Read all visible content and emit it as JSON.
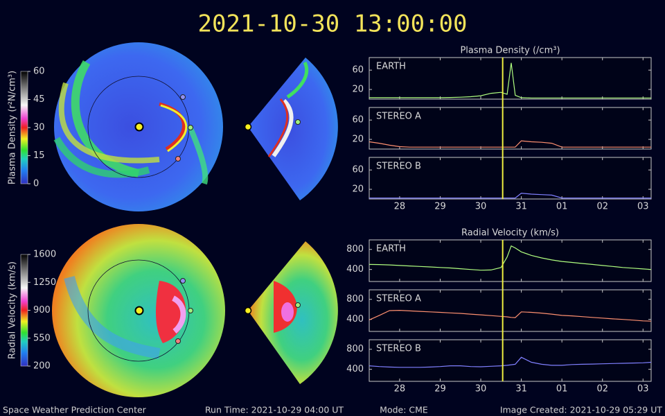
{
  "title": "2021-10-30  13:00:00",
  "footer": {
    "center": "Space Weather Prediction Center",
    "run_time": "Run Time: 2021-10-29 04:00 UT",
    "mode": "Mode: CME",
    "created": "Image Created: 2021-10-29 05:29 UT"
  },
  "colorbars": [
    {
      "label": "Plasma Density (r²N/cm³)",
      "ticks": [
        0,
        15,
        30,
        45,
        60
      ]
    },
    {
      "label": "Radial Velocity (km/s)",
      "ticks": [
        200,
        550,
        900,
        1250,
        1600
      ]
    }
  ],
  "chart_data": [
    {
      "type": "line",
      "title": "Plasma Density (/cm³)",
      "x": [
        27.25,
        27.5,
        27.75,
        28,
        28.25,
        28.5,
        28.75,
        29,
        29.25,
        29.5,
        29.75,
        30,
        30.25,
        30.5,
        30.65,
        30.75,
        30.85,
        31,
        31.25,
        31.5,
        31.75,
        32,
        32.25,
        32.5,
        32.75,
        33,
        33.25,
        33.5,
        33.75,
        34,
        34.2
      ],
      "xlim": [
        27.25,
        34.2
      ],
      "xticks": [
        28,
        29,
        30,
        31,
        {
          "value": 32,
          "label": "01"
        },
        {
          "value": 33,
          "label": "02"
        },
        {
          "value": 34,
          "label": "03"
        }
      ],
      "ylim": [
        0,
        86
      ],
      "yticks": [
        20,
        60
      ],
      "current_time": 30.54,
      "marker_color": "#f0f040",
      "series": [
        {
          "name": "EARTH",
          "color": "#b0ff80",
          "values": [
            3,
            3,
            3,
            3,
            3,
            3,
            3,
            3,
            3.5,
            4,
            5,
            7,
            12,
            14,
            10,
            75,
            8,
            3,
            2.5,
            2.5,
            2.5,
            2.5,
            2.5,
            2.5,
            2.5,
            2.5,
            2.5,
            2.5,
            2.5,
            2.5,
            2.5
          ]
        },
        {
          "name": "STEREO A",
          "color": "#ff9070",
          "values": [
            15,
            12,
            8,
            5,
            4,
            4,
            4,
            4,
            4,
            4,
            4,
            4,
            4,
            4,
            4,
            4,
            4,
            17,
            15,
            14,
            12,
            4,
            4,
            4,
            4,
            4,
            4,
            4,
            4,
            4,
            4
          ]
        },
        {
          "name": "STEREO B",
          "color": "#8080ff",
          "values": [
            2,
            2,
            2,
            2,
            2,
            2,
            2,
            2,
            2,
            2,
            2,
            2,
            2,
            2,
            2,
            2,
            2,
            12,
            10,
            9,
            8,
            2,
            2,
            2,
            2,
            2,
            2,
            2,
            2,
            2,
            2
          ]
        }
      ]
    },
    {
      "type": "line",
      "title": "Radial Velocity (km/s)",
      "x": [
        27.25,
        27.5,
        27.75,
        28,
        28.25,
        28.5,
        28.75,
        29,
        29.25,
        29.5,
        29.75,
        30,
        30.25,
        30.5,
        30.65,
        30.75,
        30.85,
        31,
        31.25,
        31.5,
        31.75,
        32,
        32.25,
        32.5,
        32.75,
        33,
        33.25,
        33.5,
        33.75,
        34,
        34.2
      ],
      "xlim": [
        27.25,
        34.2
      ],
      "xticks": [
        28,
        29,
        30,
        31,
        {
          "value": 32,
          "label": "01"
        },
        {
          "value": 33,
          "label": "02"
        },
        {
          "value": 34,
          "label": "03"
        }
      ],
      "ylim": [
        160,
        990
      ],
      "yticks": [
        400,
        800
      ],
      "current_time": 30.54,
      "marker_color": "#f0f040",
      "series": [
        {
          "name": "EARTH",
          "color": "#b0ff80",
          "values": [
            500,
            498,
            490,
            480,
            470,
            460,
            450,
            440,
            430,
            415,
            400,
            385,
            390,
            440,
            650,
            870,
            830,
            750,
            680,
            630,
            590,
            560,
            540,
            520,
            500,
            480,
            460,
            440,
            425,
            410,
            400
          ]
        },
        {
          "name": "STEREO A",
          "color": "#ff9070",
          "values": [
            390,
            480,
            575,
            580,
            570,
            560,
            550,
            540,
            530,
            520,
            505,
            490,
            475,
            460,
            450,
            440,
            435,
            550,
            540,
            525,
            505,
            480,
            470,
            455,
            440,
            425,
            410,
            400,
            385,
            370,
            365
          ]
        },
        {
          "name": "STEREO B",
          "color": "#8080ff",
          "values": [
            470,
            455,
            445,
            440,
            440,
            440,
            445,
            455,
            470,
            470,
            455,
            450,
            460,
            470,
            480,
            490,
            500,
            640,
            540,
            500,
            480,
            480,
            495,
            500,
            505,
            510,
            515,
            520,
            525,
            530,
            540
          ]
        }
      ]
    }
  ]
}
